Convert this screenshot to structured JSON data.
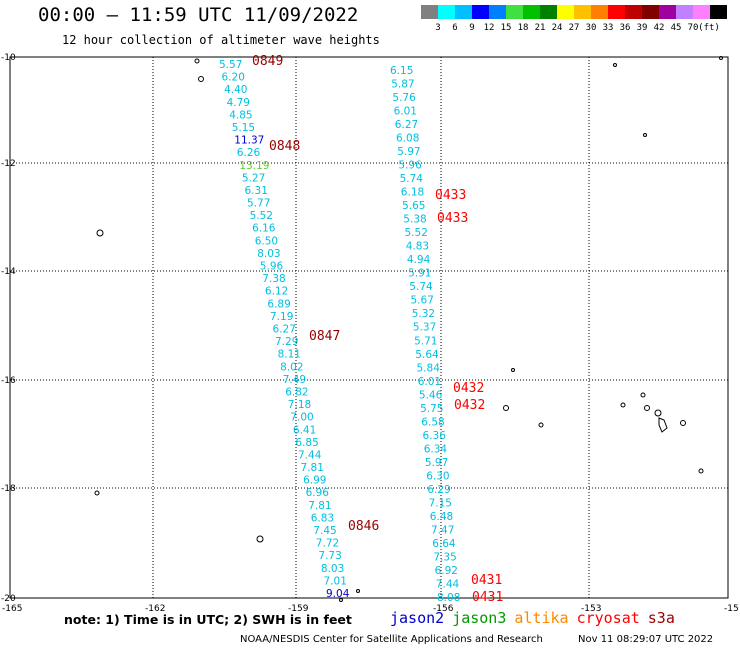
{
  "header": {
    "title": "00:00 – 11:59 UTC 11/09/2022",
    "subtitle": "12 hour collection of altimeter wave heights"
  },
  "color_scale": {
    "unit_label": "(ft)",
    "colors": [
      "#808080",
      "#00ffff",
      "#00bfff",
      "#0000ff",
      "#0080ff",
      "#40e040",
      "#00c000",
      "#008000",
      "#ffff00",
      "#ffc000",
      "#ff8000",
      "#ff0000",
      "#c00000",
      "#800000",
      "#a000a0",
      "#c080ff",
      "#ff80ff",
      "#000000"
    ],
    "labels": [
      "3",
      "6",
      "9",
      "12",
      "15",
      "18",
      "21",
      "24",
      "27",
      "30",
      "33",
      "36",
      "39",
      "42",
      "45",
      "70"
    ]
  },
  "axes": {
    "lon_labels": [
      "-165",
      "-162",
      "-159",
      "-156",
      "-153",
      "-15"
    ],
    "lat_labels": [
      "-10",
      "-12",
      "-14",
      "-16",
      "-18",
      "-20"
    ]
  },
  "tracks": {
    "cyan_color": "#00bfe0",
    "track_a": [
      {
        "v": "5.57",
        "c": "#00bfe0"
      },
      {
        "v": "6.20",
        "c": "#00bfe0"
      },
      {
        "v": "4.40",
        "c": "#00bfe0"
      },
      {
        "v": "4.79",
        "c": "#00bfe0"
      },
      {
        "v": "4.85",
        "c": "#00bfe0"
      },
      {
        "v": "5.15",
        "c": "#00bfe0"
      },
      {
        "v": "11.37",
        "c": "#0000cc"
      },
      {
        "v": "6.26",
        "c": "#00bfe0"
      },
      {
        "v": "13.19",
        "c": "#66cc33"
      },
      {
        "v": "5.27",
        "c": "#00bfe0"
      },
      {
        "v": "6.31",
        "c": "#00bfe0"
      },
      {
        "v": "5.77",
        "c": "#00bfe0"
      },
      {
        "v": "5.52",
        "c": "#00bfe0"
      },
      {
        "v": "6.16",
        "c": "#00bfe0"
      },
      {
        "v": "6.50",
        "c": "#00bfe0"
      },
      {
        "v": "8.03",
        "c": "#00bfe0"
      },
      {
        "v": "5.96",
        "c": "#00bfe0"
      },
      {
        "v": "7.38",
        "c": "#00bfe0"
      },
      {
        "v": "6.12",
        "c": "#00bfe0"
      },
      {
        "v": "6.89",
        "c": "#00bfe0"
      },
      {
        "v": "7.19",
        "c": "#00bfe0"
      },
      {
        "v": "6.27",
        "c": "#00bfe0"
      },
      {
        "v": "7.29",
        "c": "#00bfe0"
      },
      {
        "v": "8.11",
        "c": "#00bfe0"
      },
      {
        "v": "8.02",
        "c": "#00bfe0"
      },
      {
        "v": "7.49",
        "c": "#00bfe0"
      },
      {
        "v": "6.82",
        "c": "#00bfe0"
      },
      {
        "v": "7.18",
        "c": "#00bfe0"
      },
      {
        "v": "7.00",
        "c": "#00bfe0"
      },
      {
        "v": "6.41",
        "c": "#00bfe0"
      },
      {
        "v": "6.85",
        "c": "#00bfe0"
      },
      {
        "v": "7.44",
        "c": "#00bfe0"
      },
      {
        "v": "7.81",
        "c": "#00bfe0"
      },
      {
        "v": "6.99",
        "c": "#00bfe0"
      },
      {
        "v": "6.96",
        "c": "#00bfe0"
      },
      {
        "v": "7.81",
        "c": "#00bfe0"
      },
      {
        "v": "6.83",
        "c": "#00bfe0"
      },
      {
        "v": "7.45",
        "c": "#00bfe0"
      },
      {
        "v": "7.72",
        "c": "#00bfe0"
      },
      {
        "v": "7.73",
        "c": "#00bfe0"
      },
      {
        "v": "8.03",
        "c": "#00bfe0"
      },
      {
        "v": "7.01",
        "c": "#00bfe0"
      },
      {
        "v": "9.04",
        "c": "#0000cc"
      }
    ],
    "track_b": [
      {
        "v": "6.15",
        "c": "#00bfe0"
      },
      {
        "v": "5.87",
        "c": "#00bfe0"
      },
      {
        "v": "5.76",
        "c": "#00bfe0"
      },
      {
        "v": "6.01",
        "c": "#00bfe0"
      },
      {
        "v": "6.27",
        "c": "#00bfe0"
      },
      {
        "v": "6.08",
        "c": "#00bfe0"
      },
      {
        "v": "5.97",
        "c": "#00bfe0"
      },
      {
        "v": "5.96",
        "c": "#00bfe0"
      },
      {
        "v": "5.74",
        "c": "#00bfe0"
      },
      {
        "v": "6.18",
        "c": "#00bfe0"
      },
      {
        "v": "5.65",
        "c": "#00bfe0"
      },
      {
        "v": "5.38",
        "c": "#00bfe0"
      },
      {
        "v": "5.52",
        "c": "#00bfe0"
      },
      {
        "v": "4.83",
        "c": "#00bfe0"
      },
      {
        "v": "4.94",
        "c": "#00bfe0"
      },
      {
        "v": "5.91",
        "c": "#00bfe0"
      },
      {
        "v": "5.74",
        "c": "#00bfe0"
      },
      {
        "v": "5.67",
        "c": "#00bfe0"
      },
      {
        "v": "5.32",
        "c": "#00bfe0"
      },
      {
        "v": "5.37",
        "c": "#00bfe0"
      },
      {
        "v": "5.71",
        "c": "#00bfe0"
      },
      {
        "v": "5.64",
        "c": "#00bfe0"
      },
      {
        "v": "5.84",
        "c": "#00bfe0"
      },
      {
        "v": "6.01",
        "c": "#00bfe0"
      },
      {
        "v": "5.46",
        "c": "#00bfe0"
      },
      {
        "v": "5.75",
        "c": "#00bfe0"
      },
      {
        "v": "6.58",
        "c": "#00bfe0"
      },
      {
        "v": "6.36",
        "c": "#00bfe0"
      },
      {
        "v": "6.34",
        "c": "#00bfe0"
      },
      {
        "v": "5.97",
        "c": "#00bfe0"
      },
      {
        "v": "6.30",
        "c": "#00bfe0"
      },
      {
        "v": "6.29",
        "c": "#00bfe0"
      },
      {
        "v": "7.15",
        "c": "#00bfe0"
      },
      {
        "v": "6.48",
        "c": "#00bfe0"
      },
      {
        "v": "7.47",
        "c": "#00bfe0"
      },
      {
        "v": "6.64",
        "c": "#00bfe0"
      },
      {
        "v": "7.35",
        "c": "#00bfe0"
      },
      {
        "v": "6.92",
        "c": "#00bfe0"
      },
      {
        "v": "7.44",
        "c": "#00bfe0"
      },
      {
        "v": "8.08",
        "c": "#00bfe0"
      }
    ],
    "times": [
      {
        "t": "0849",
        "c": "#990000"
      },
      {
        "t": "0848",
        "c": "#990000"
      },
      {
        "t": "0847",
        "c": "#990000"
      },
      {
        "t": "0846",
        "c": "#990000"
      },
      {
        "t": "0433",
        "c": "#ff0000"
      },
      {
        "t": "0433",
        "c": "#ff0000"
      },
      {
        "t": "0432",
        "c": "#ff0000"
      },
      {
        "t": "0432",
        "c": "#ff0000"
      },
      {
        "t": "0431",
        "c": "#ff0000"
      },
      {
        "t": "0431",
        "c": "#ff0000"
      }
    ]
  },
  "footer": {
    "note": "note: 1) Time is in UTC; 2) SWH is in feet",
    "legend": [
      {
        "label": "jason2",
        "color": "#0000cc"
      },
      {
        "label": "jason3",
        "color": "#009900"
      },
      {
        "label": "altika",
        "color": "#ff8800"
      },
      {
        "label": "cryosat",
        "color": "#ff0000"
      },
      {
        "label": "s3a",
        "color": "#990000"
      }
    ],
    "credit": "NOAA/NESDIS Center for Satellite Applications and Research",
    "timestamp": "Nov 11 08:29:07 UTC 2022"
  }
}
